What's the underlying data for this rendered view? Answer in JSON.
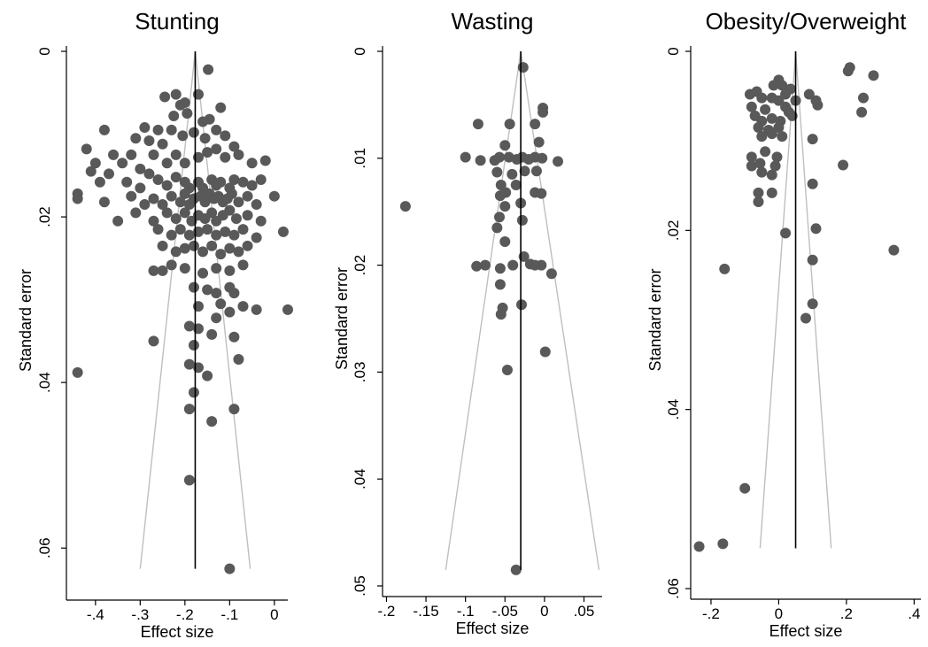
{
  "colors": {
    "background": "#ffffff",
    "axis": "#000000",
    "point": "#595959",
    "funnel": "#bfbfbf",
    "mean_line": "#000000"
  },
  "chart_data": [
    {
      "type": "scatter",
      "title": "Stunting",
      "xlabel": "Effect size",
      "ylabel": "Standard error",
      "xlim": [
        -0.465,
        0.03
      ],
      "ylim": [
        0,
        0.065
      ],
      "y_reversed": true,
      "xticks": [
        {
          "v": -0.4,
          "label": "-.4"
        },
        {
          "v": -0.3,
          "label": "-.3"
        },
        {
          "v": -0.2,
          "label": "-.2"
        },
        {
          "v": -0.1,
          "label": "-.1"
        },
        {
          "v": 0,
          "label": "0"
        }
      ],
      "yticks": [
        {
          "v": 0,
          "label": "0"
        },
        {
          "v": 0.02,
          "label": ".02"
        },
        {
          "v": 0.04,
          "label": ".04"
        },
        {
          "v": 0.06,
          "label": ".06"
        }
      ],
      "summary_effect": -0.177,
      "funnel": {
        "se_max": 0.0625,
        "left_at_max": -0.3,
        "right_at_max": -0.054
      },
      "points": [
        [
          -0.148,
          0.0022
        ],
        [
          -0.12,
          0.0068
        ],
        [
          -0.17,
          0.0052
        ],
        [
          -0.22,
          0.0052
        ],
        [
          -0.245,
          0.0055
        ],
        [
          -0.21,
          0.0065
        ],
        [
          -0.2,
          0.0062
        ],
        [
          -0.225,
          0.0078
        ],
        [
          -0.195,
          0.0075
        ],
        [
          -0.16,
          0.0085
        ],
        [
          -0.145,
          0.0082
        ],
        [
          -0.26,
          0.0095
        ],
        [
          -0.29,
          0.0092
        ],
        [
          -0.31,
          0.0105
        ],
        [
          -0.28,
          0.0108
        ],
        [
          -0.25,
          0.0112
        ],
        [
          -0.23,
          0.0095
        ],
        [
          -0.205,
          0.0102
        ],
        [
          -0.18,
          0.0098
        ],
        [
          -0.155,
          0.0105
        ],
        [
          -0.13,
          0.0095
        ],
        [
          -0.11,
          0.0102
        ],
        [
          -0.09,
          0.0115
        ],
        [
          -0.38,
          0.0095
        ],
        [
          -0.42,
          0.0118
        ],
        [
          -0.4,
          0.0135
        ],
        [
          -0.36,
          0.0125
        ],
        [
          -0.34,
          0.0135
        ],
        [
          -0.32,
          0.0125
        ],
        [
          -0.3,
          0.0142
        ],
        [
          -0.27,
          0.0125
        ],
        [
          -0.24,
          0.0135
        ],
        [
          -0.22,
          0.0125
        ],
        [
          -0.2,
          0.0135
        ],
        [
          -0.17,
          0.0128
        ],
        [
          -0.15,
          0.0122
        ],
        [
          -0.13,
          0.0118
        ],
        [
          -0.11,
          0.0128
        ],
        [
          -0.08,
          0.0125
        ],
        [
          -0.05,
          0.0135
        ],
        [
          -0.02,
          0.0132
        ],
        [
          -0.41,
          0.0145
        ],
        [
          -0.39,
          0.0158
        ],
        [
          -0.37,
          0.0148
        ],
        [
          -0.33,
          0.0158
        ],
        [
          -0.3,
          0.0165
        ],
        [
          -0.28,
          0.0148
        ],
        [
          -0.26,
          0.0155
        ],
        [
          -0.24,
          0.0162
        ],
        [
          -0.22,
          0.0152
        ],
        [
          -0.2,
          0.0158
        ],
        [
          -0.19,
          0.0165
        ],
        [
          -0.17,
          0.0158
        ],
        [
          -0.16,
          0.0165
        ],
        [
          -0.14,
          0.0155
        ],
        [
          -0.13,
          0.0162
        ],
        [
          -0.12,
          0.0158
        ],
        [
          -0.1,
          0.0165
        ],
        [
          -0.09,
          0.0155
        ],
        [
          -0.07,
          0.0158
        ],
        [
          -0.05,
          0.0162
        ],
        [
          -0.03,
          0.0155
        ],
        [
          -0.44,
          0.0172
        ],
        [
          -0.44,
          0.0178
        ],
        [
          -0.38,
          0.0182
        ],
        [
          -0.32,
          0.0175
        ],
        [
          -0.29,
          0.0185
        ],
        [
          -0.27,
          0.0178
        ],
        [
          -0.25,
          0.0185
        ],
        [
          -0.23,
          0.0175
        ],
        [
          -0.21,
          0.0182
        ],
        [
          -0.2,
          0.0172
        ],
        [
          -0.19,
          0.0185
        ],
        [
          -0.18,
          0.0178
        ],
        [
          -0.165,
          0.0175
        ],
        [
          -0.155,
          0.0182
        ],
        [
          -0.145,
          0.0172
        ],
        [
          -0.135,
          0.0178
        ],
        [
          -0.125,
          0.0175
        ],
        [
          -0.115,
          0.0182
        ],
        [
          -0.105,
          0.0178
        ],
        [
          -0.095,
          0.0172
        ],
        [
          -0.08,
          0.0182
        ],
        [
          -0.06,
          0.0175
        ],
        [
          -0.04,
          0.0185
        ],
        [
          0.0,
          0.0175
        ],
        [
          -0.31,
          0.0195
        ],
        [
          -0.27,
          0.0205
        ],
        [
          -0.24,
          0.0195
        ],
        [
          -0.22,
          0.0202
        ],
        [
          -0.2,
          0.0195
        ],
        [
          -0.185,
          0.0205
        ],
        [
          -0.17,
          0.0198
        ],
        [
          -0.155,
          0.0202
        ],
        [
          -0.14,
          0.0195
        ],
        [
          -0.13,
          0.0205
        ],
        [
          -0.115,
          0.0198
        ],
        [
          -0.1,
          0.0192
        ],
        [
          -0.085,
          0.0202
        ],
        [
          -0.06,
          0.0198
        ],
        [
          -0.03,
          0.0205
        ],
        [
          -0.35,
          0.0205
        ],
        [
          -0.26,
          0.0215
        ],
        [
          -0.23,
          0.0222
        ],
        [
          -0.21,
          0.0215
        ],
        [
          -0.19,
          0.0222
        ],
        [
          -0.17,
          0.0218
        ],
        [
          -0.15,
          0.0215
        ],
        [
          -0.13,
          0.0222
        ],
        [
          -0.11,
          0.0218
        ],
        [
          -0.09,
          0.0222
        ],
        [
          -0.07,
          0.0215
        ],
        [
          -0.04,
          0.0225
        ],
        [
          0.02,
          0.0218
        ],
        [
          -0.25,
          0.0235
        ],
        [
          -0.22,
          0.0242
        ],
        [
          -0.2,
          0.0238
        ],
        [
          -0.18,
          0.0235
        ],
        [
          -0.16,
          0.0242
        ],
        [
          -0.14,
          0.0235
        ],
        [
          -0.12,
          0.0245
        ],
        [
          -0.1,
          0.0238
        ],
        [
          -0.08,
          0.0242
        ],
        [
          -0.06,
          0.0235
        ],
        [
          -0.25,
          0.0265
        ],
        [
          -0.23,
          0.0258
        ],
        [
          -0.2,
          0.0262
        ],
        [
          -0.16,
          0.0268
        ],
        [
          -0.13,
          0.0262
        ],
        [
          -0.1,
          0.0265
        ],
        [
          -0.07,
          0.0258
        ],
        [
          -0.27,
          0.0265
        ],
        [
          -0.18,
          0.0285
        ],
        [
          -0.15,
          0.0288
        ],
        [
          -0.1,
          0.0285
        ],
        [
          -0.09,
          0.0292
        ],
        [
          -0.13,
          0.0292
        ],
        [
          -0.17,
          0.0308
        ],
        [
          -0.12,
          0.0305
        ],
        [
          -0.07,
          0.0308
        ],
        [
          -0.1,
          0.0315
        ],
        [
          -0.13,
          0.0322
        ],
        [
          -0.04,
          0.0312
        ],
        [
          0.03,
          0.0312
        ],
        [
          -0.19,
          0.0332
        ],
        [
          -0.17,
          0.0335
        ],
        [
          -0.14,
          0.0342
        ],
        [
          -0.09,
          0.0345
        ],
        [
          -0.27,
          0.035
        ],
        [
          -0.18,
          0.0355
        ],
        [
          -0.19,
          0.0378
        ],
        [
          -0.17,
          0.0382
        ],
        [
          -0.08,
          0.0372
        ],
        [
          -0.15,
          0.0392
        ],
        [
          -0.44,
          0.0388
        ],
        [
          -0.18,
          0.0412
        ],
        [
          -0.19,
          0.0432
        ],
        [
          -0.09,
          0.0432
        ],
        [
          -0.14,
          0.0447
        ],
        [
          -0.19,
          0.0518
        ],
        [
          -0.1,
          0.0625
        ]
      ]
    },
    {
      "type": "scatter",
      "title": "Wasting",
      "xlabel": "Effect size",
      "ylabel": "Standard error",
      "xlim": [
        -0.205,
        0.073
      ],
      "ylim": [
        0,
        0.05
      ],
      "y_reversed": true,
      "xticks": [
        {
          "v": -0.2,
          "label": "-.2"
        },
        {
          "v": -0.15,
          "label": "-.15"
        },
        {
          "v": -0.1,
          "label": "-.1"
        },
        {
          "v": -0.05,
          "label": "-.05"
        },
        {
          "v": 0,
          "label": "0"
        },
        {
          "v": 0.05,
          "label": ".05"
        }
      ],
      "yticks": [
        {
          "v": 0,
          "label": "0"
        },
        {
          "v": 0.01,
          "label": ".01"
        },
        {
          "v": 0.02,
          "label": ".02"
        },
        {
          "v": 0.03,
          "label": ".03"
        },
        {
          "v": 0.04,
          "label": ".04"
        },
        {
          "v": 0.05,
          "label": ".05"
        }
      ],
      "summary_effect": -0.03,
      "funnel": {
        "se_max": 0.0485,
        "left_at_max": -0.125,
        "right_at_max": 0.069
      },
      "points": [
        [
          -0.027,
          0.0015
        ],
        [
          -0.002,
          0.0053
        ],
        [
          -0.002,
          0.0057
        ],
        [
          -0.084,
          0.0068
        ],
        [
          -0.044,
          0.0068
        ],
        [
          -0.012,
          0.0068
        ],
        [
          -0.05,
          0.0088
        ],
        [
          -0.007,
          0.0085
        ],
        [
          -0.1,
          0.0099
        ],
        [
          -0.081,
          0.0102
        ],
        [
          -0.063,
          0.0102
        ],
        [
          -0.057,
          0.0099
        ],
        [
          -0.045,
          0.0099
        ],
        [
          -0.035,
          0.0101
        ],
        [
          -0.028,
          0.0099
        ],
        [
          -0.02,
          0.0101
        ],
        [
          -0.012,
          0.0099
        ],
        [
          -0.003,
          0.01
        ],
        [
          0.017,
          0.0103
        ],
        [
          -0.06,
          0.0113
        ],
        [
          -0.041,
          0.0115
        ],
        [
          -0.025,
          0.0112
        ],
        [
          -0.01,
          0.0112
        ],
        [
          -0.055,
          0.0125
        ],
        [
          -0.036,
          0.0125
        ],
        [
          -0.056,
          0.0135
        ],
        [
          -0.049,
          0.0132
        ],
        [
          -0.012,
          0.0132
        ],
        [
          -0.004,
          0.0133
        ],
        [
          -0.05,
          0.0145
        ],
        [
          -0.03,
          0.0142
        ],
        [
          -0.176,
          0.0145
        ],
        [
          -0.057,
          0.0155
        ],
        [
          -0.028,
          0.0158
        ],
        [
          -0.06,
          0.0165
        ],
        [
          -0.05,
          0.0178
        ],
        [
          -0.086,
          0.0201
        ],
        [
          -0.075,
          0.02
        ],
        [
          -0.056,
          0.0203
        ],
        [
          -0.04,
          0.02
        ],
        [
          -0.026,
          0.0192
        ],
        [
          -0.018,
          0.0199
        ],
        [
          -0.012,
          0.02
        ],
        [
          -0.004,
          0.02
        ],
        [
          0.009,
          0.0208
        ],
        [
          -0.056,
          0.0218
        ],
        [
          -0.029,
          0.0237
        ],
        [
          -0.053,
          0.024
        ],
        [
          -0.055,
          0.0246
        ],
        [
          0.001,
          0.0281
        ],
        [
          -0.047,
          0.0298
        ],
        [
          -0.036,
          0.0485
        ]
      ]
    },
    {
      "type": "scatter",
      "title": "Obesity/Overweight",
      "xlabel": "Effect size",
      "ylabel": "Standard error",
      "xlim": [
        -0.26,
        0.42
      ],
      "ylim": [
        0,
        0.06
      ],
      "y_reversed": true,
      "xticks": [
        {
          "v": -0.2,
          "label": "-.2"
        },
        {
          "v": 0,
          "label": "0"
        },
        {
          "v": 0.2,
          "label": ".2"
        },
        {
          "v": 0.4,
          "label": ".4"
        }
      ],
      "yticks": [
        {
          "v": 0,
          "label": "0"
        },
        {
          "v": 0.02,
          "label": ".02"
        },
        {
          "v": 0.04,
          "label": ".04"
        },
        {
          "v": 0.06,
          "label": ".06"
        }
      ],
      "summary_effect": 0.05,
      "funnel": {
        "se_max": 0.0555,
        "left_at_max": -0.055,
        "right_at_max": 0.155
      },
      "points": [
        [
          0.21,
          0.0018
        ],
        [
          0.205,
          0.0022
        ],
        [
          0.28,
          0.0027
        ],
        [
          0.0,
          0.0032
        ],
        [
          -0.015,
          0.0038
        ],
        [
          0.01,
          0.0038
        ],
        [
          0.035,
          0.0042
        ],
        [
          -0.065,
          0.0045
        ],
        [
          -0.085,
          0.0048
        ],
        [
          -0.05,
          0.0052
        ],
        [
          -0.02,
          0.0052
        ],
        [
          0.0,
          0.0055
        ],
        [
          0.02,
          0.0048
        ],
        [
          0.05,
          0.0055
        ],
        [
          0.09,
          0.0048
        ],
        [
          0.11,
          0.0055
        ],
        [
          0.25,
          0.0052
        ],
        [
          -0.08,
          0.0062
        ],
        [
          -0.04,
          0.0065
        ],
        [
          0.02,
          0.0062
        ],
        [
          0.03,
          0.0068
        ],
        [
          0.115,
          0.006
        ],
        [
          0.245,
          0.0068
        ],
        [
          -0.07,
          0.0072
        ],
        [
          -0.05,
          0.0078
        ],
        [
          -0.02,
          0.0075
        ],
        [
          0.005,
          0.0078
        ],
        [
          0.04,
          0.0072
        ],
        [
          -0.06,
          0.0085
        ],
        [
          -0.03,
          0.0088
        ],
        [
          0.0,
          0.0085
        ],
        [
          -0.05,
          0.0095
        ],
        [
          -0.02,
          0.0092
        ],
        [
          0.01,
          0.0095
        ],
        [
          0.1,
          0.0098
        ],
        [
          -0.08,
          0.0118
        ],
        [
          -0.04,
          0.0112
        ],
        [
          -0.005,
          0.0118
        ],
        [
          -0.08,
          0.0128
        ],
        [
          -0.055,
          0.0125
        ],
        [
          -0.01,
          0.0128
        ],
        [
          0.19,
          0.0127
        ],
        [
          -0.05,
          0.0135
        ],
        [
          -0.02,
          0.0138
        ],
        [
          0.1,
          0.0148
        ],
        [
          -0.06,
          0.0158
        ],
        [
          -0.02,
          0.0158
        ],
        [
          -0.06,
          0.0168
        ],
        [
          0.02,
          0.0203
        ],
        [
          0.11,
          0.0198
        ],
        [
          0.34,
          0.0222
        ],
        [
          -0.16,
          0.0243
        ],
        [
          0.1,
          0.0233
        ],
        [
          0.1,
          0.0282
        ],
        [
          0.08,
          0.0298
        ],
        [
          -0.1,
          0.0488
        ],
        [
          -0.235,
          0.0553
        ],
        [
          -0.165,
          0.055
        ]
      ]
    }
  ]
}
